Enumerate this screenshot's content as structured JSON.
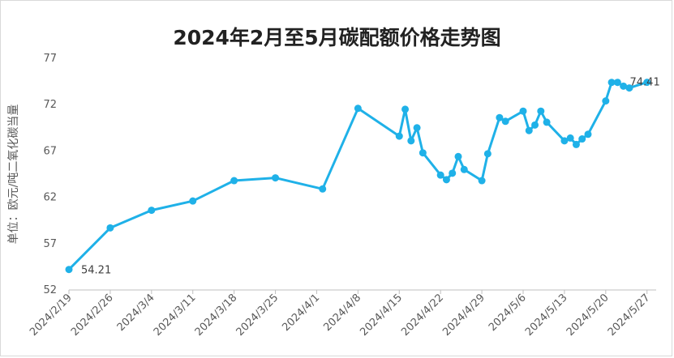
{
  "chart_data": {
    "type": "line",
    "title": "2024年2月至5月碳配额价格走势图",
    "xlabel": "",
    "ylabel": "单位：欧元/吨二氧化碳当量",
    "ylim": [
      52,
      77
    ],
    "yticks": [
      52,
      57,
      62,
      67,
      72,
      77
    ],
    "xlim": [
      "2024-02-19",
      "2024-05-28"
    ],
    "xticks": [
      "2024/2/19",
      "2024/2/26",
      "2024/3/4",
      "2024/3/11",
      "2024/3/18",
      "2024/3/25",
      "2024/4/1",
      "2024/4/8",
      "2024/4/15",
      "2024/4/22",
      "2024/4/29",
      "2024/5/6",
      "2024/5/13",
      "2024/5/20",
      "2024/5/27"
    ],
    "grid": false,
    "legend": "none",
    "line_color": "#1fb1e8",
    "series": [
      {
        "x": [
          "2024-02-19",
          "2024-02-26",
          "2024-03-04",
          "2024-03-11",
          "2024-03-18",
          "2024-03-25",
          "2024-04-02",
          "2024-04-08",
          "2024-04-15",
          "2024-04-16",
          "2024-04-17",
          "2024-04-18",
          "2024-04-19",
          "2024-04-22",
          "2024-04-23",
          "2024-04-24",
          "2024-04-25",
          "2024-04-26",
          "2024-04-29",
          "2024-04-30",
          "2024-05-02",
          "2024-05-03",
          "2024-05-06",
          "2024-05-07",
          "2024-05-08",
          "2024-05-09",
          "2024-05-10",
          "2024-05-13",
          "2024-05-14",
          "2024-05-15",
          "2024-05-16",
          "2024-05-17",
          "2024-05-20",
          "2024-05-21",
          "2024-05-22",
          "2024-05-23",
          "2024-05-24",
          "2024-05-27"
        ],
        "values": [
          54.21,
          58.7,
          60.6,
          61.6,
          63.8,
          64.1,
          62.9,
          71.6,
          68.6,
          71.5,
          68.1,
          69.5,
          66.8,
          64.4,
          63.9,
          64.6,
          66.4,
          65.0,
          63.8,
          66.7,
          70.6,
          70.2,
          71.3,
          69.2,
          69.8,
          71.3,
          70.1,
          68.1,
          68.4,
          67.7,
          68.3,
          68.8,
          72.4,
          74.4,
          74.4,
          74.0,
          73.8,
          74.41
        ]
      }
    ],
    "data_labels": [
      {
        "index": 0,
        "text": "54.21"
      },
      {
        "index": 37,
        "text": "74.41"
      }
    ]
  }
}
